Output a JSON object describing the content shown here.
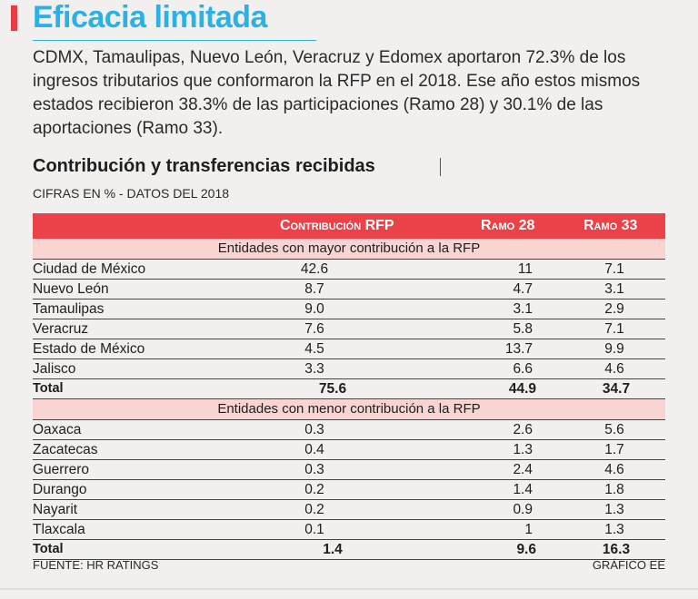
{
  "headline": "Eficacia limitada",
  "intro": "CDMX, Tamaulipas, Nuevo León, Veracruz y Edomex aportaron 72.3% de los ingresos tributarios que conformaron la RFP en el 2018. Ese año estos mismos estados recibieron 38.3% de las participaciones (Ramo 28) y 30.1% de las aportaciones (Ramo 33).",
  "source": "FUENTE: HR RATINGS",
  "credit": "GRÁFICO EE",
  "colors": {
    "headline": "#2bb1e5",
    "header_bg": "#ea4248",
    "section_bg": "#f8d5d3",
    "accent": "#e63c43"
  },
  "chart_data": {
    "type": "table",
    "title": "Contribución y transferencias recibidas",
    "subtitle": "CIFRAS EN % - DATOS DEL 2018",
    "columns": [
      "Contribución RFP",
      "Ramo 28",
      "Ramo 33"
    ],
    "sections": [
      {
        "label": "Entidades con mayor contribución a la RFP",
        "rows": [
          {
            "name": "Ciudad de México",
            "values": [
              "42.6",
              "11",
              "7.1"
            ]
          },
          {
            "name": "Nuevo León",
            "values": [
              "8.7",
              "4.7",
              "3.1"
            ]
          },
          {
            "name": "Tamaulipas",
            "values": [
              "9.0",
              "3.1",
              "2.9"
            ]
          },
          {
            "name": "Veracruz",
            "values": [
              "7.6",
              "5.8",
              "7.1"
            ]
          },
          {
            "name": "Estado de México",
            "values": [
              "4.5",
              "13.7",
              "9.9"
            ]
          },
          {
            "name": "Jalisco",
            "values": [
              "3.3",
              "6.6",
              "4.6"
            ]
          }
        ],
        "total": {
          "name": "Total",
          "values": [
            "75.6",
            "44.9",
            "34.7"
          ]
        }
      },
      {
        "label": "Entidades con menor contribución a la RFP",
        "rows": [
          {
            "name": "Oaxaca",
            "values": [
              "0.3",
              "2.6",
              "5.6"
            ]
          },
          {
            "name": "Zacatecas",
            "values": [
              "0.4",
              "1.3",
              "1.7"
            ]
          },
          {
            "name": "Guerrero",
            "values": [
              "0.3",
              "2.4",
              "4.6"
            ]
          },
          {
            "name": "Durango",
            "values": [
              "0.2",
              "1.4",
              "1.8"
            ]
          },
          {
            "name": "Nayarit",
            "values": [
              "0.2",
              "0.9",
              "1.3"
            ]
          },
          {
            "name": "Tlaxcala",
            "values": [
              "0.1",
              "1",
              "1.3"
            ]
          }
        ],
        "total": {
          "name": "Total",
          "values": [
            "1.4",
            "9.6",
            "16.3"
          ]
        }
      }
    ]
  }
}
